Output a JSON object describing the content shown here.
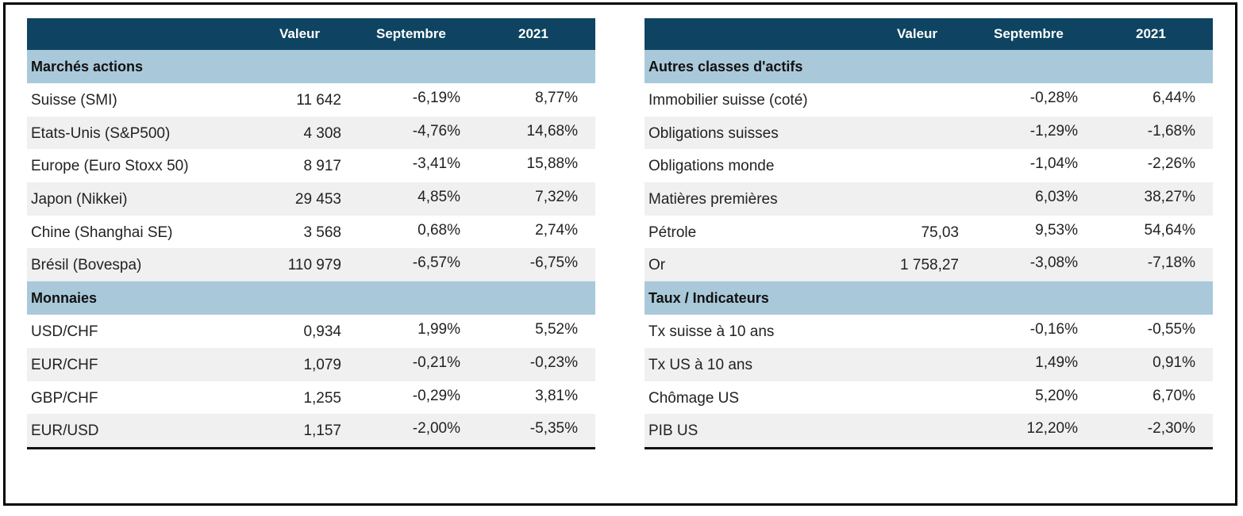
{
  "left": {
    "header": {
      "label": "",
      "valeur": "Valeur",
      "septembre": "Septembre",
      "year": "2021"
    },
    "sections": [
      {
        "title": "Marchés actions",
        "rows": [
          {
            "label": "Suisse (SMI)",
            "valeur": "11 642",
            "septembre": "-6,19%",
            "year": "8,77%"
          },
          {
            "label": "Etats-Unis (S&P500)",
            "valeur": "4 308",
            "septembre": "-4,76%",
            "year": "14,68%"
          },
          {
            "label": "Europe (Euro Stoxx 50)",
            "valeur": "8 917",
            "septembre": "-3,41%",
            "year": "15,88%"
          },
          {
            "label": "Japon (Nikkei)",
            "valeur": "29 453",
            "septembre": "4,85%",
            "year": "7,32%"
          },
          {
            "label": "Chine (Shanghai SE)",
            "valeur": "3 568",
            "septembre": "0,68%",
            "year": "2,74%"
          },
          {
            "label": "Brésil (Bovespa)",
            "valeur": "110 979",
            "septembre": "-6,57%",
            "year": "-6,75%"
          }
        ]
      },
      {
        "title": "Monnaies",
        "rows": [
          {
            "label": "USD/CHF",
            "valeur": "0,934",
            "septembre": "1,99%",
            "year": "5,52%"
          },
          {
            "label": "EUR/CHF",
            "valeur": "1,079",
            "septembre": "-0,21%",
            "year": "-0,23%"
          },
          {
            "label": "GBP/CHF",
            "valeur": "1,255",
            "septembre": "-0,29%",
            "year": "3,81%"
          },
          {
            "label": "EUR/USD",
            "valeur": "1,157",
            "septembre": "-2,00%",
            "year": "-5,35%"
          }
        ]
      }
    ]
  },
  "right": {
    "header": {
      "label": "",
      "valeur": "Valeur",
      "septembre": "Septembre",
      "year": "2021"
    },
    "sections": [
      {
        "title": "Autres classes d'actifs",
        "rows": [
          {
            "label": "Immobilier suisse (coté)",
            "valeur": "",
            "septembre": "-0,28%",
            "year": "6,44%"
          },
          {
            "label": "Obligations suisses",
            "valeur": "",
            "septembre": "-1,29%",
            "year": "-1,68%"
          },
          {
            "label": "Obligations monde",
            "valeur": "",
            "septembre": "-1,04%",
            "year": "-2,26%"
          },
          {
            "label": "Matières premières",
            "valeur": "",
            "septembre": "6,03%",
            "year": "38,27%"
          },
          {
            "label": "Pétrole",
            "valeur": "75,03",
            "septembre": "9,53%",
            "year": "54,64%"
          },
          {
            "label": "Or",
            "valeur": "1 758,27",
            "septembre": "-3,08%",
            "year": "-7,18%"
          }
        ]
      },
      {
        "title": "Taux / Indicateurs",
        "rows": [
          {
            "label": "Tx suisse à 10 ans",
            "valeur": "",
            "septembre": "-0,16%",
            "year": "-0,55%"
          },
          {
            "label": "Tx US à 10 ans",
            "valeur": "",
            "septembre": "1,49%",
            "year": "0,91%"
          },
          {
            "label": "Chômage US",
            "valeur": "",
            "septembre": "5,20%",
            "year": "6,70%"
          },
          {
            "label": "PIB US",
            "valeur": "",
            "septembre": "12,20%",
            "year": "-2,30%"
          }
        ]
      }
    ]
  }
}
